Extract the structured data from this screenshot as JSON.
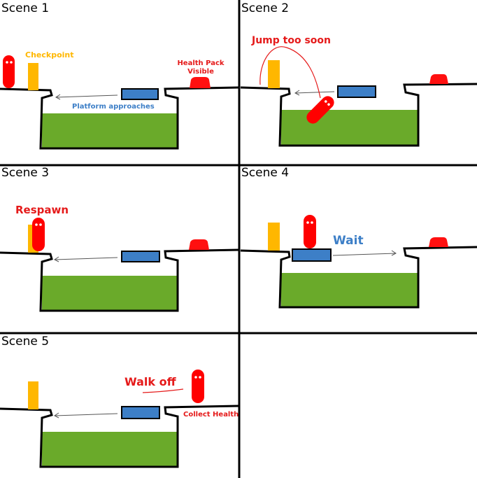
{
  "colors": {
    "player": "#ff0000",
    "checkpoint": "#ffb700",
    "platform": "#3d7fc7",
    "liquid": "#6aaa2a",
    "health_pack": "#ff1010",
    "outline": "#000000",
    "label_red": "#e51a1a",
    "label_blue": "#3d7fc7",
    "label_yellow": "#ffb700"
  },
  "scenes": [
    {
      "title": "Scene 1",
      "annotations": {
        "checkpoint": "Checkpoint",
        "platform": "Platform approaches",
        "health": "Health Pack\nVisible"
      }
    },
    {
      "title": "Scene 2",
      "annotations": {
        "jump": "Jump too soon"
      }
    },
    {
      "title": "Scene 3",
      "annotations": {
        "respawn": "Respawn"
      }
    },
    {
      "title": "Scene 4",
      "annotations": {
        "wait": "Wait"
      }
    },
    {
      "title": "Scene 5",
      "annotations": {
        "walk": "Walk off",
        "collect": "Collect Health"
      }
    }
  ],
  "icons": [
    "player-character",
    "checkpoint-flag",
    "moving-platform",
    "health-pack"
  ]
}
